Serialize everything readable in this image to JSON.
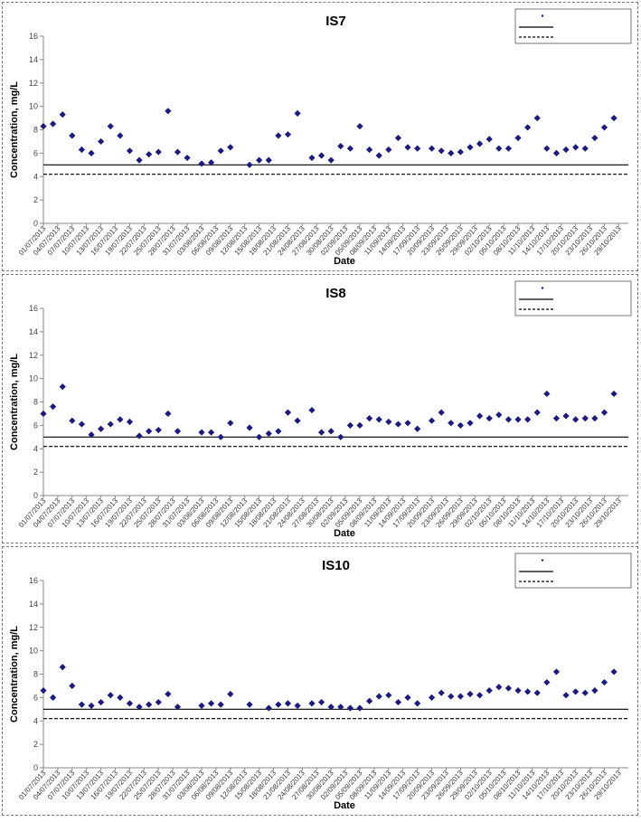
{
  "colors": {
    "marker": "#1a1a80",
    "axis": "#888888",
    "line": "#000000"
  },
  "x_axis_label": "Date",
  "y_axis_label": "Concentration, mg/L",
  "legend": [
    "",
    "",
    ""
  ],
  "chart_data": [
    {
      "type": "scatter",
      "title": "IS7",
      "xlabel": "Date",
      "ylabel": "Concentration, mg/L",
      "ylim": [
        0,
        16
      ],
      "yticks": [
        0,
        2,
        4,
        6,
        8,
        10,
        12,
        14,
        16
      ],
      "xlim": [
        "01/07/2013",
        "31/10/2013"
      ],
      "xticks": [
        "01/07/2013",
        "04/07/2013",
        "07/07/2013",
        "10/07/2013",
        "13/07/2013",
        "16/07/2013",
        "19/07/2013",
        "22/07/2013",
        "25/07/2013",
        "28/07/2013",
        "31/07/2013",
        "03/08/2013",
        "06/08/2013",
        "09/08/2013",
        "12/08/2013",
        "15/08/2013",
        "18/08/2013",
        "21/08/2013",
        "24/08/2013",
        "27/08/2013",
        "30/08/2013",
        "02/09/2013",
        "05/09/2013",
        "08/09/2013",
        "11/09/2013",
        "14/09/2013",
        "17/09/2013",
        "20/09/2013",
        "23/09/2013",
        "26/09/2013",
        "29/09/2013",
        "02/10/2013",
        "05/10/2013",
        "08/10/2013",
        "11/10/2013",
        "14/10/2013",
        "17/10/2013",
        "20/10/2013",
        "23/10/2013",
        "26/10/2013",
        "29/10/2013"
      ],
      "reference_lines": [
        {
          "style": "solid",
          "y": 5.0
        },
        {
          "style": "dashed",
          "y": 4.2
        }
      ],
      "x": [
        "01/07/2013",
        "03/07/2013",
        "05/07/2013",
        "07/07/2013",
        "09/07/2013",
        "11/07/2013",
        "13/07/2013",
        "15/07/2013",
        "17/07/2013",
        "19/07/2013",
        "21/07/2013",
        "23/07/2013",
        "25/07/2013",
        "27/07/2013",
        "29/07/2013",
        "31/07/2013",
        "03/08/2013",
        "05/08/2013",
        "07/08/2013",
        "09/08/2013",
        "13/08/2013",
        "15/08/2013",
        "17/08/2013",
        "19/08/2013",
        "21/08/2013",
        "23/08/2013",
        "26/08/2013",
        "28/08/2013",
        "30/08/2013",
        "01/09/2013",
        "03/09/2013",
        "05/09/2013",
        "07/09/2013",
        "09/09/2013",
        "11/09/2013",
        "13/09/2013",
        "15/09/2013",
        "17/09/2013",
        "20/09/2013",
        "22/09/2013",
        "24/09/2013",
        "26/09/2013",
        "28/09/2013",
        "30/09/2013",
        "02/10/2013",
        "04/10/2013",
        "06/10/2013",
        "08/10/2013",
        "10/10/2013",
        "12/10/2013",
        "14/10/2013",
        "16/10/2013",
        "18/10/2013",
        "20/10/2013",
        "22/10/2013",
        "24/10/2013",
        "26/10/2013",
        "28/10/2013"
      ],
      "y": [
        8.3,
        8.5,
        9.3,
        7.5,
        6.3,
        6.0,
        7.0,
        8.3,
        7.5,
        6.2,
        5.4,
        5.9,
        6.1,
        9.6,
        6.1,
        5.6,
        5.1,
        5.2,
        6.2,
        6.5,
        5.0,
        5.4,
        5.4,
        7.5,
        7.6,
        9.4,
        5.6,
        5.8,
        5.4,
        6.6,
        6.4,
        8.3,
        6.3,
        5.8,
        6.3,
        7.3,
        6.5,
        6.4,
        6.4,
        6.2,
        6.0,
        6.1,
        6.5,
        6.8,
        7.2,
        6.4,
        6.4,
        7.3,
        8.2,
        9.0,
        6.4,
        6.0,
        6.3,
        6.5,
        6.4,
        7.3,
        8.2,
        9.0
      ]
    },
    {
      "type": "scatter",
      "title": "IS8",
      "xlabel": "Date",
      "ylabel": "Concentration, mg/L",
      "ylim": [
        0,
        16
      ],
      "yticks": [
        0,
        2,
        4,
        6,
        8,
        10,
        12,
        14,
        16
      ],
      "xlim": [
        "01/07/2013",
        "31/10/2013"
      ],
      "xticks": [
        "01/07/2013",
        "04/07/2013",
        "07/07/2013",
        "10/07/2013",
        "13/07/2013",
        "16/07/2013",
        "19/07/2013",
        "22/07/2013",
        "25/07/2013",
        "28/07/2013",
        "31/07/2013",
        "03/08/2013",
        "06/08/2013",
        "09/08/2013",
        "12/08/2013",
        "15/08/2013",
        "18/08/2013",
        "21/08/2013",
        "24/08/2013",
        "27/08/2013",
        "30/08/2013",
        "02/09/2013",
        "05/09/2013",
        "08/09/2013",
        "11/09/2013",
        "14/09/2013",
        "17/09/2013",
        "20/09/2013",
        "23/09/2013",
        "26/09/2013",
        "29/09/2013",
        "02/10/2013",
        "05/10/2013",
        "08/10/2013",
        "11/10/2013",
        "14/10/2013",
        "17/10/2013",
        "20/10/2013",
        "23/10/2013",
        "26/10/2013",
        "29/10/2013"
      ],
      "reference_lines": [
        {
          "style": "solid",
          "y": 5.0
        },
        {
          "style": "dashed",
          "y": 4.2
        }
      ],
      "x": [
        "01/07/2013",
        "03/07/2013",
        "05/07/2013",
        "07/07/2013",
        "09/07/2013",
        "11/07/2013",
        "13/07/2013",
        "15/07/2013",
        "17/07/2013",
        "19/07/2013",
        "21/07/2013",
        "23/07/2013",
        "25/07/2013",
        "27/07/2013",
        "29/07/2013",
        "03/08/2013",
        "05/08/2013",
        "07/08/2013",
        "09/08/2013",
        "13/08/2013",
        "15/08/2013",
        "17/08/2013",
        "19/08/2013",
        "21/08/2013",
        "23/08/2013",
        "26/08/2013",
        "28/08/2013",
        "30/08/2013",
        "01/09/2013",
        "03/09/2013",
        "05/09/2013",
        "07/09/2013",
        "09/09/2013",
        "11/09/2013",
        "13/09/2013",
        "15/09/2013",
        "17/09/2013",
        "20/09/2013",
        "22/09/2013",
        "24/09/2013",
        "26/09/2013",
        "28/09/2013",
        "30/09/2013",
        "02/10/2013",
        "04/10/2013",
        "06/10/2013",
        "08/10/2013",
        "10/10/2013",
        "12/10/2013",
        "14/10/2013",
        "16/10/2013",
        "18/10/2013",
        "20/10/2013",
        "22/10/2013",
        "24/10/2013",
        "26/10/2013",
        "28/10/2013"
      ],
      "y": [
        7.0,
        7.6,
        9.3,
        6.4,
        6.1,
        5.2,
        5.7,
        6.1,
        6.5,
        6.3,
        5.1,
        5.5,
        5.6,
        7.0,
        5.5,
        5.4,
        5.4,
        5.0,
        6.2,
        5.8,
        5.0,
        5.3,
        5.5,
        7.1,
        6.4,
        7.3,
        5.4,
        5.5,
        5.0,
        6.0,
        6.0,
        6.6,
        6.5,
        6.3,
        6.1,
        6.2,
        5.7,
        6.4,
        7.1,
        6.2,
        6.0,
        6.2,
        6.8,
        6.6,
        6.9,
        6.5,
        6.5,
        6.5,
        7.1,
        8.7,
        6.6,
        6.8,
        6.5,
        6.6,
        6.6,
        7.1,
        8.7
      ]
    },
    {
      "type": "scatter",
      "title": "IS10",
      "xlabel": "Date",
      "ylabel": "Concentration, mg/L",
      "ylim": [
        0,
        16
      ],
      "yticks": [
        0,
        2,
        4,
        6,
        8,
        10,
        12,
        14,
        16
      ],
      "xlim": [
        "01/07/2013",
        "31/10/2013"
      ],
      "xticks": [
        "01/07/2013",
        "04/07/2013",
        "07/07/2013",
        "10/07/2013",
        "13/07/2013",
        "16/07/2013",
        "19/07/2013",
        "22/07/2013",
        "25/07/2013",
        "28/07/2013",
        "31/07/2013",
        "03/08/2013",
        "06/08/2013",
        "09/08/2013",
        "12/08/2013",
        "15/08/2013",
        "18/08/2013",
        "21/08/2013",
        "24/08/2013",
        "27/08/2013",
        "30/08/2013",
        "02/09/2013",
        "05/09/2013",
        "08/09/2013",
        "11/09/2013",
        "14/09/2013",
        "17/09/2013",
        "20/09/2013",
        "23/09/2013",
        "26/09/2013",
        "29/09/2013",
        "02/10/2013",
        "05/10/2013",
        "08/10/2013",
        "11/10/2013",
        "14/10/2013",
        "17/10/2013",
        "20/10/2013",
        "23/10/2013",
        "26/10/2013",
        "29/10/2013"
      ],
      "reference_lines": [
        {
          "style": "solid",
          "y": 5.0
        },
        {
          "style": "dashed",
          "y": 4.2
        }
      ],
      "x": [
        "01/07/2013",
        "03/07/2013",
        "05/07/2013",
        "07/07/2013",
        "09/07/2013",
        "11/07/2013",
        "13/07/2013",
        "15/07/2013",
        "17/07/2013",
        "19/07/2013",
        "21/07/2013",
        "23/07/2013",
        "25/07/2013",
        "27/07/2013",
        "29/07/2013",
        "03/08/2013",
        "05/08/2013",
        "07/08/2013",
        "09/08/2013",
        "13/08/2013",
        "17/08/2013",
        "19/08/2013",
        "21/08/2013",
        "23/08/2013",
        "26/08/2013",
        "28/08/2013",
        "30/08/2013",
        "01/09/2013",
        "03/09/2013",
        "05/09/2013",
        "07/09/2013",
        "09/09/2013",
        "11/09/2013",
        "13/09/2013",
        "15/09/2013",
        "17/09/2013",
        "20/09/2013",
        "22/09/2013",
        "24/09/2013",
        "26/09/2013",
        "28/09/2013",
        "30/09/2013",
        "02/10/2013",
        "04/10/2013",
        "06/10/2013",
        "08/10/2013",
        "10/10/2013",
        "12/10/2013",
        "14/10/2013",
        "16/10/2013",
        "18/10/2013",
        "20/10/2013",
        "22/10/2013",
        "24/10/2013",
        "26/10/2013",
        "28/10/2013"
      ],
      "y": [
        6.6,
        6.0,
        8.6,
        7.0,
        5.4,
        5.3,
        5.6,
        6.2,
        6.0,
        5.5,
        5.2,
        5.4,
        5.6,
        6.3,
        5.2,
        5.3,
        5.5,
        5.4,
        6.3,
        5.4,
        5.1,
        5.4,
        5.5,
        5.3,
        5.5,
        5.6,
        5.2,
        5.2,
        5.1,
        5.1,
        5.7,
        6.1,
        6.2,
        5.6,
        6.0,
        5.5,
        6.0,
        6.4,
        6.1,
        6.1,
        6.3,
        6.2,
        6.6,
        6.9,
        6.8,
        6.6,
        6.5,
        6.4,
        7.3,
        8.2,
        6.2,
        6.5,
        6.4,
        6.6,
        7.3,
        8.2
      ]
    }
  ]
}
